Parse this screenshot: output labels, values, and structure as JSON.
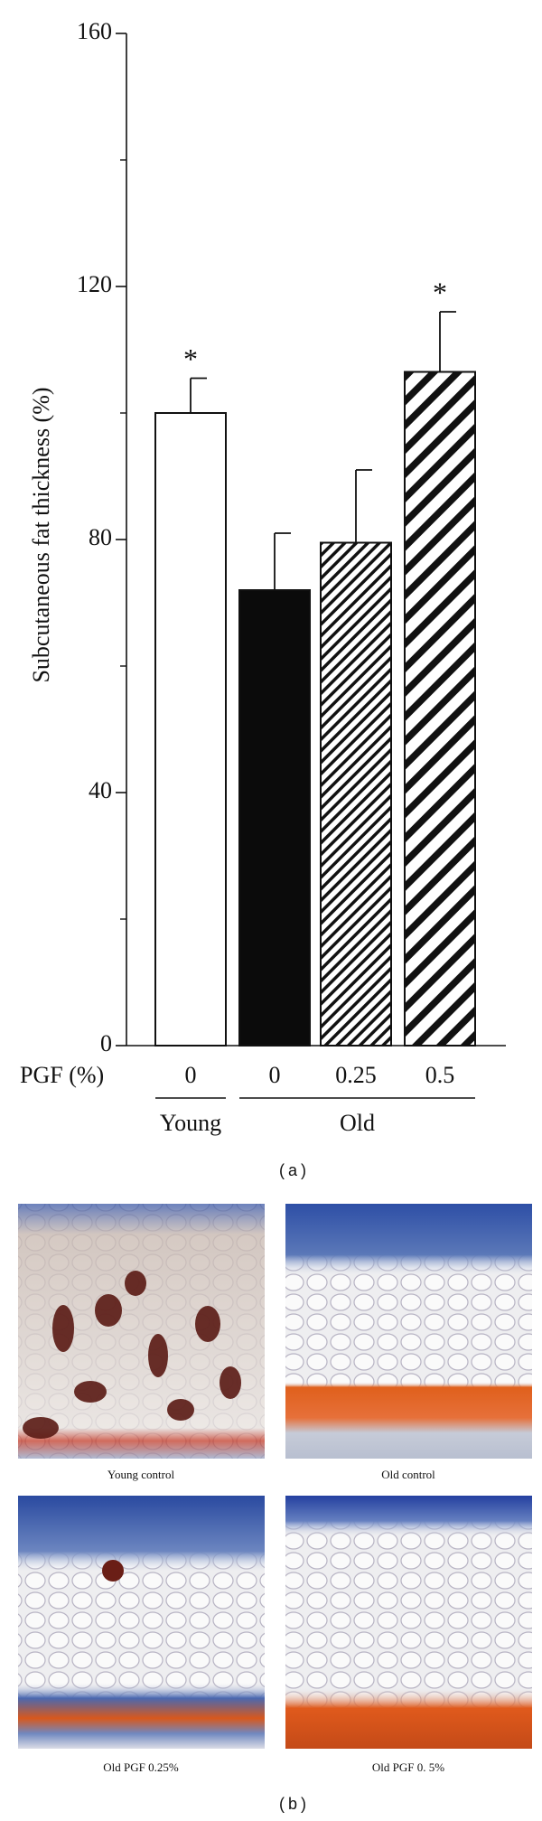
{
  "chart_data": {
    "type": "bar",
    "y_label": "Subcutaneous fat thickness (%)",
    "x_label": "PGF (%)",
    "categories": [
      "0",
      "0",
      "0.25",
      "0.5"
    ],
    "groups": [
      "Young",
      "Old"
    ],
    "values": [
      100,
      72,
      79.5,
      106.5
    ],
    "errors": [
      5.5,
      9,
      11.5,
      9.5
    ],
    "patterns": [
      "white",
      "black",
      "fine-hatch",
      "wide-hatch"
    ],
    "annotations": [
      "*",
      null,
      null,
      "*"
    ],
    "ylim": [
      0,
      160
    ],
    "yticks": [
      0,
      40,
      80,
      120,
      160
    ],
    "yminor": [
      20,
      60,
      100,
      140
    ],
    "panel_label": "(a)"
  },
  "micrographs": {
    "captions": [
      "Young control",
      "Old control",
      "Old PGF 0.25%",
      "Old PGF 0. 5%"
    ],
    "panel_label": "(b)"
  }
}
